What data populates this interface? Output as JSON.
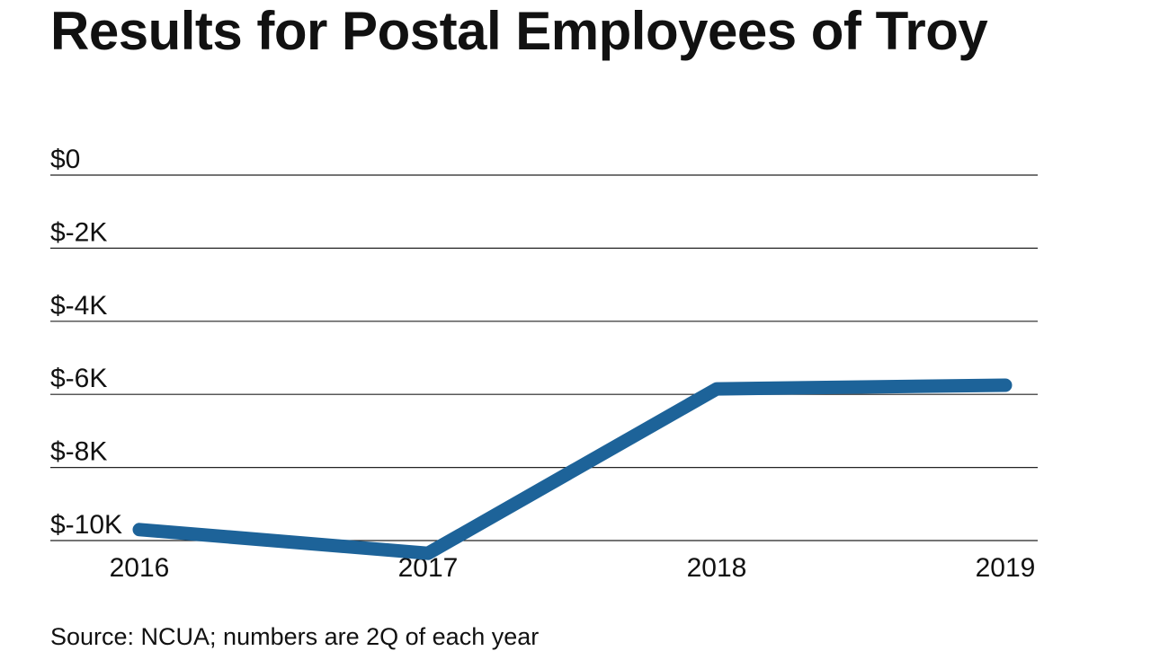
{
  "title": "Results for Postal Employees of Troy",
  "source": "Source: NCUA; numbers are 2Q of each year",
  "chart_data": {
    "type": "line",
    "title": "Results for Postal Employees of Troy",
    "xlabel": "",
    "ylabel": "",
    "categories": [
      "2016",
      "2017",
      "2018",
      "2019"
    ],
    "series": [
      {
        "values": [
          -9700,
          -10350,
          -5850,
          -5750
        ],
        "color": "#1d6399"
      }
    ],
    "y_ticks": [
      0,
      -2000,
      -4000,
      -6000,
      -8000,
      -10000
    ],
    "y_tick_labels": [
      "$0",
      "$-2K",
      "$-4K",
      "$-6K",
      "$-8K",
      "$-10K"
    ],
    "ylim": [
      -10000,
      0
    ],
    "grid": true,
    "legend": "none",
    "colors": {
      "line": "#1d6399",
      "grid": "#222222",
      "text": "#111111"
    }
  }
}
